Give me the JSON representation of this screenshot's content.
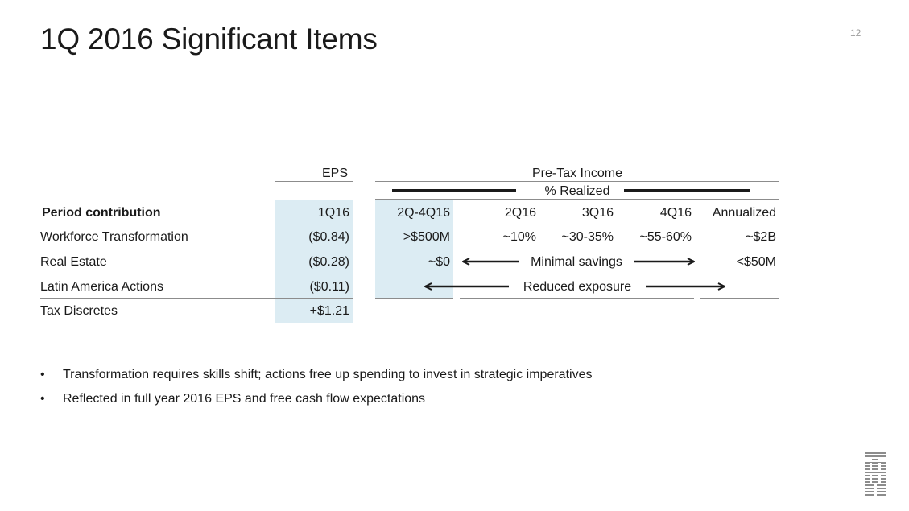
{
  "slide": {
    "title": "1Q 2016 Significant Items",
    "page_number": "12"
  },
  "table": {
    "eps_header": "EPS",
    "pretax_header": "Pre-Tax Income",
    "realized_header": "% Realized",
    "header_row": {
      "label": "Period contribution",
      "eps": "1Q16",
      "q2_4": "2Q-4Q16",
      "q2": "2Q16",
      "q3": "3Q16",
      "q4": "4Q16",
      "annualized": "Annualized"
    },
    "rows": [
      {
        "label": "Workforce Transformation",
        "eps": "($0.84)",
        "q2_4": ">$500M",
        "q2": "~10%",
        "q3": "~30-35%",
        "q4": "~55-60%",
        "annualized": "~$2B"
      },
      {
        "label": "Real Estate",
        "eps": "($0.28)",
        "q2_4": "~$0",
        "span_text": "Minimal savings",
        "annualized": "<$50M"
      },
      {
        "label": "Latin America Actions",
        "eps": "($0.11)",
        "span_text": "Reduced exposure"
      },
      {
        "label": "Tax Discretes",
        "eps": "+$1.21"
      }
    ]
  },
  "bullets": [
    "Transformation requires skills shift; actions free up spending to invest in strategic imperatives",
    "Reflected in full year 2016 EPS and free cash flow expectations"
  ],
  "bullet_char": "•",
  "logo": {
    "text": "IBM",
    "icon": "ibm-logo-icon",
    "color": "#8c8c8c"
  },
  "colors": {
    "shade": "#dcecf3",
    "rule": "#8c8c8c",
    "text": "#1a1a1a"
  }
}
